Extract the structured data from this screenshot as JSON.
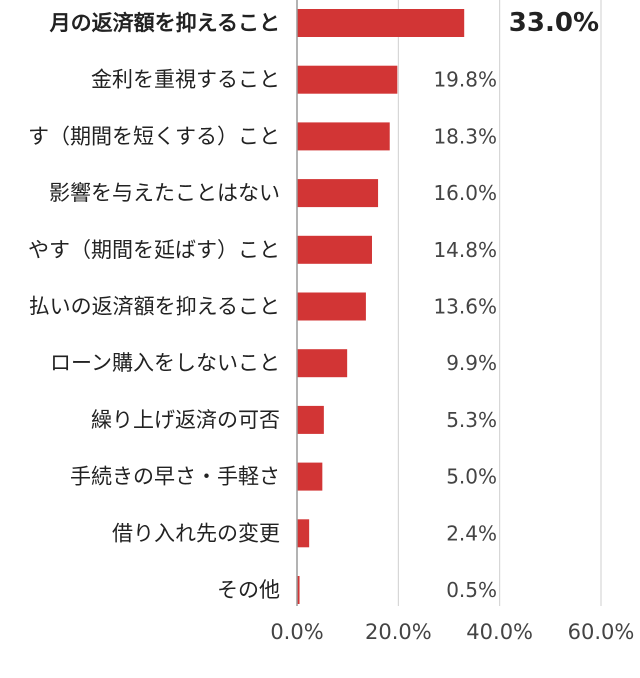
{
  "chart_data": {
    "type": "bar",
    "orientation": "horizontal",
    "categories": [
      "月の返済額を抑えること",
      "金利を重視すること",
      "す（期間を短くする）こと",
      "影響を与えたことはない",
      "やす（期間を延ばす）こと",
      "払いの返済額を抑えること",
      "ローン購入をしないこと",
      "繰り上げ返済の可否",
      "手続きの早さ・手軽さ",
      "借り入れ先の変更",
      "その他"
    ],
    "values": [
      33.0,
      19.8,
      18.3,
      16.0,
      14.8,
      13.6,
      9.9,
      5.3,
      5.0,
      2.4,
      0.5
    ],
    "value_labels": [
      "33.0%",
      "19.8%",
      "18.3%",
      "16.0%",
      "14.8%",
      "13.6%",
      "9.9%",
      "5.3%",
      "5.0%",
      "2.4%",
      "0.5%"
    ],
    "highlight_index": 0,
    "xlim": [
      0,
      60
    ],
    "x_ticks": [
      0,
      20,
      40,
      60
    ],
    "x_tick_labels": [
      "0.0%",
      "20.0%",
      "40.0%",
      "60.0%"
    ],
    "grid": true,
    "title": "",
    "xlabel": "",
    "ylabel": "",
    "colors": {
      "bar": "#d23535",
      "gridline": "#cfcfcf",
      "axis": "#9a9a9a",
      "text": "#222222",
      "value_text": "#444444"
    }
  }
}
